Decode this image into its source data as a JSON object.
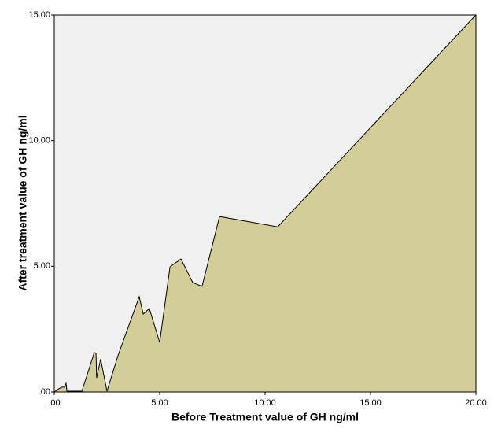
{
  "chart_data": {
    "type": "area",
    "x_label": "Before Treatment value of GH ng/ml",
    "y_label": "After treatment value of GH ng/ml",
    "x": [
      0,
      0.22,
      0.37,
      0.48,
      0.56,
      0.6,
      1.31,
      1.9,
      1.98,
      2.01,
      2.2,
      2.5,
      3.02,
      4.03,
      4.22,
      4.51,
      5.0,
      5.49,
      6.01,
      6.57,
      7.01,
      7.84,
      10.6,
      20
    ],
    "values": [
      0,
      0.13,
      0.19,
      0.19,
      0.34,
      0.03,
      0.03,
      1.57,
      1.53,
      0.56,
      1.31,
      0.03,
      1.44,
      3.79,
      3.1,
      3.32,
      1.97,
      4.98,
      5.29,
      4.35,
      4.2,
      6.98,
      6.57,
      15
    ],
    "color": "#d3ce97",
    "background": "#f0f0f0",
    "xlim": [
      0,
      20
    ],
    "ylim": [
      0,
      15
    ],
    "xticks": [
      {
        "value": 0,
        "label": ".00"
      },
      {
        "value": 5,
        "label": "5.00"
      },
      {
        "value": 10,
        "label": "10.00"
      },
      {
        "value": 15,
        "label": "15.00"
      },
      {
        "value": 20,
        "label": "20.00"
      }
    ],
    "yticks": [
      {
        "value": 0,
        "label": ".00"
      },
      {
        "value": 5,
        "label": "5.00"
      },
      {
        "value": 10,
        "label": "10.00"
      },
      {
        "value": 15,
        "label": "15.00"
      }
    ]
  }
}
